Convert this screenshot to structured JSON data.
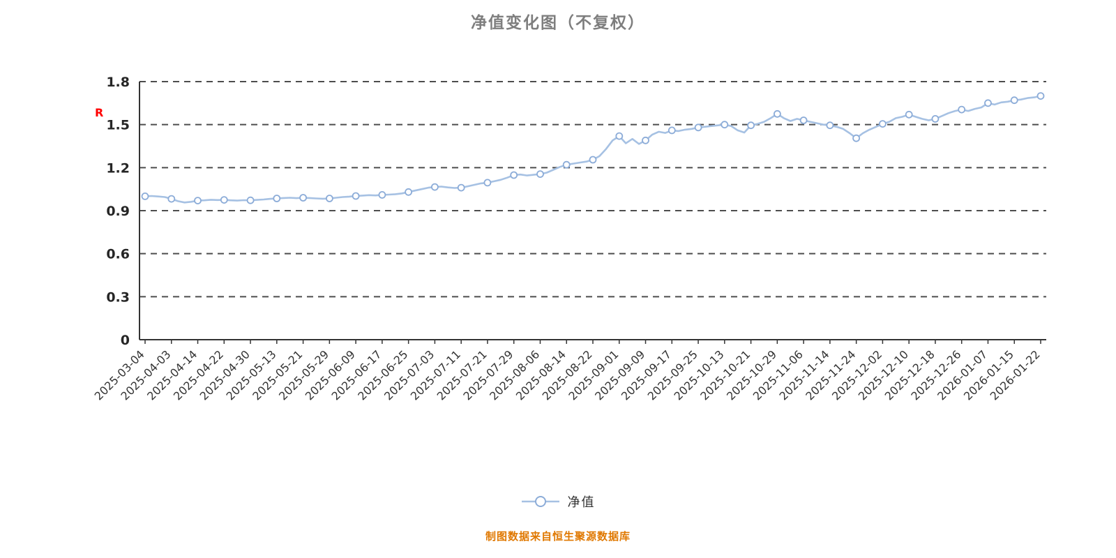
{
  "title": "净值变化图（不复权）",
  "r_flag": "R",
  "legend": {
    "label": "净值"
  },
  "footer": {
    "text": "制图数据来自恒生聚源数据库"
  },
  "colors": {
    "line": "#a6c1e3",
    "marker_fill": "#ffffff",
    "marker_stroke": "#8cacd8",
    "grid": "#4d4d4d",
    "axis": "#333333",
    "tick_label": "#262626",
    "x_label": "#333333",
    "title": "#7e7e7e",
    "footer": "#e07800",
    "r_flag": "#ff0000"
  },
  "chart_data": {
    "type": "line",
    "title": "净值变化图（不复权）",
    "xlabel": "",
    "ylabel": "",
    "ylim": [
      0,
      1.8
    ],
    "yticks": [
      0,
      0.3,
      0.6,
      0.9,
      1.2,
      1.5,
      1.8
    ],
    "grid": "horizontal-dashed",
    "legend_position": "bottom",
    "label_every": 4,
    "x_labels": [
      "2025-03-04",
      "2025-04-03",
      "2025-04-14",
      "2025-04-22",
      "2025-04-30",
      "2025-05-13",
      "2025-05-21",
      "2025-05-29",
      "2025-06-09",
      "2025-06-17",
      "2025-06-25",
      "2025-07-03",
      "2025-07-11",
      "2025-07-21",
      "2025-07-29",
      "2025-08-06",
      "2025-08-14",
      "2025-08-22",
      "2025-09-01",
      "2025-09-09",
      "2025-09-17",
      "2025-09-25",
      "2025-10-13",
      "2025-10-21",
      "2025-10-29",
      "2025-11-06",
      "2025-11-14",
      "2025-11-24",
      "2025-12-02",
      "2025-12-10",
      "2025-12-18",
      "2025-12-26",
      "2026-01-07",
      "2026-01-15",
      "2026-01-22"
    ],
    "series": [
      {
        "name": "净值",
        "values": [
          1.0,
          1.002,
          0.999,
          0.995,
          0.982,
          0.966,
          0.957,
          0.962,
          0.97,
          0.972,
          0.976,
          0.974,
          0.975,
          0.972,
          0.97,
          0.973,
          0.972,
          0.975,
          0.978,
          0.982,
          0.985,
          0.988,
          0.99,
          0.987,
          0.99,
          0.988,
          0.985,
          0.983,
          0.985,
          0.99,
          0.995,
          0.998,
          1.002,
          1.005,
          1.008,
          1.006,
          1.01,
          1.012,
          1.015,
          1.02,
          1.03,
          1.04,
          1.05,
          1.06,
          1.065,
          1.068,
          1.062,
          1.058,
          1.06,
          1.07,
          1.08,
          1.09,
          1.095,
          1.105,
          1.115,
          1.13,
          1.148,
          1.152,
          1.145,
          1.15,
          1.155,
          1.165,
          1.185,
          1.205,
          1.22,
          1.228,
          1.235,
          1.242,
          1.255,
          1.28,
          1.33,
          1.39,
          1.42,
          1.37,
          1.4,
          1.365,
          1.39,
          1.43,
          1.45,
          1.442,
          1.46,
          1.455,
          1.465,
          1.47,
          1.48,
          1.485,
          1.49,
          1.495,
          1.5,
          1.49,
          1.46,
          1.445,
          1.495,
          1.505,
          1.52,
          1.545,
          1.575,
          1.545,
          1.525,
          1.54,
          1.53,
          1.52,
          1.51,
          1.5,
          1.495,
          1.485,
          1.47,
          1.44,
          1.405,
          1.44,
          1.465,
          1.485,
          1.505,
          1.52,
          1.545,
          1.555,
          1.57,
          1.555,
          1.54,
          1.53,
          1.54,
          1.56,
          1.58,
          1.595,
          1.605,
          1.595,
          1.61,
          1.62,
          1.65,
          1.64,
          1.655,
          1.66,
          1.67,
          1.675,
          1.685,
          1.69,
          1.7
        ]
      }
    ]
  }
}
